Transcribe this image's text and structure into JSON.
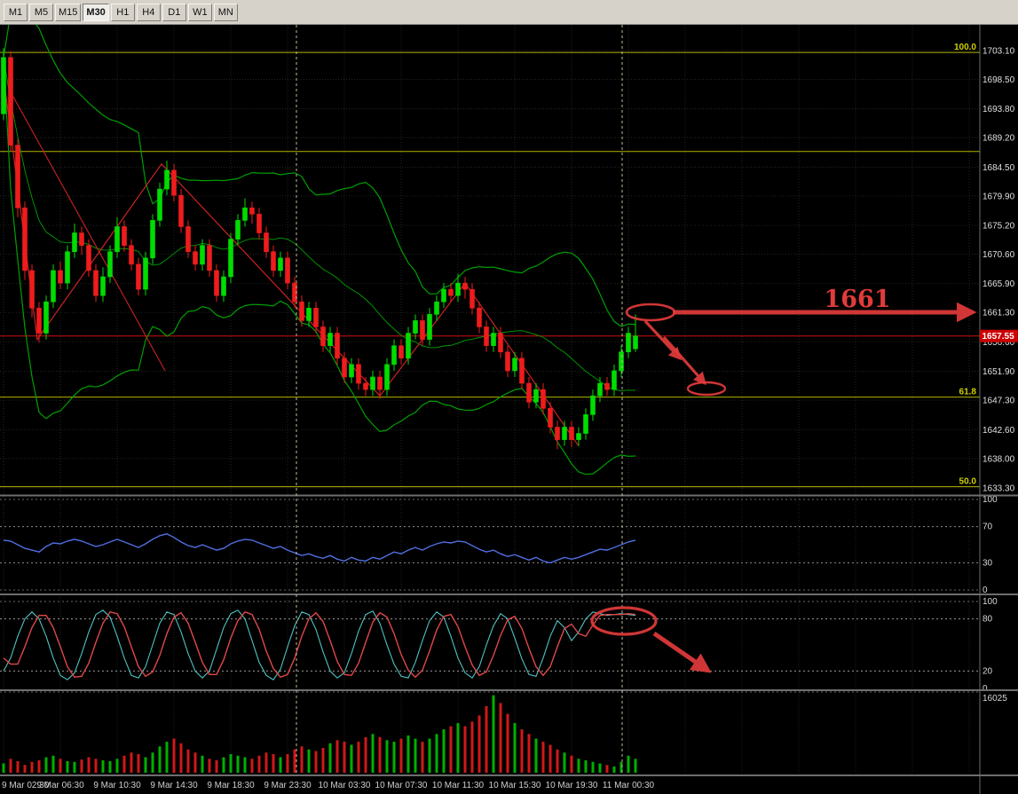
{
  "toolbar": {
    "timeframes": [
      "M1",
      "M5",
      "M15",
      "M30",
      "H1",
      "H4",
      "D1",
      "W1",
      "MN"
    ],
    "active": "M30"
  },
  "price_scale": {
    "ticks": [
      "1703.10",
      "1698.50",
      "1693.80",
      "1689.20",
      "1684.50",
      "1679.90",
      "1675.20",
      "1670.60",
      "1665.90",
      "1661.30",
      "1656.60",
      "1651.90",
      "1647.30",
      "1642.60",
      "1638.00",
      "1633.30"
    ],
    "current_price": "1657.55"
  },
  "fibo": {
    "levels": [
      {
        "label": "100.0",
        "price": 1702.8
      },
      {
        "label": "",
        "price": 1687.0
      },
      {
        "label": "61.8",
        "price": 1647.8
      },
      {
        "label": "50.0",
        "price": 1633.5
      }
    ]
  },
  "indicators": {
    "rsi_levels": [
      100,
      70,
      30,
      0
    ],
    "stoch_levels": [
      100,
      80,
      20,
      0
    ],
    "volume_axis_label": "16025"
  },
  "time_axis": {
    "labels": [
      "9 Mar 02:30",
      "9 Mar 06:30",
      "9 Mar 10:30",
      "9 Mar 14:30",
      "9 Mar 18:30",
      "9 Mar 23:30",
      "10 Mar 03:30",
      "10 Mar 07:30",
      "10 Mar 11:30",
      "10 Mar 15:30",
      "10 Mar 19:30",
      "11 Mar 00:30"
    ]
  },
  "chart_data": {
    "type": "candlestick",
    "timeframe": "M30",
    "price_range": [
      1632.3,
      1707.2
    ],
    "candles": [
      [
        1693,
        1703.5,
        1692,
        1702
      ],
      [
        1702,
        1703,
        1687,
        1688
      ],
      [
        1688,
        1689,
        1676.5,
        1678
      ],
      [
        1678,
        1679,
        1666.5,
        1668
      ],
      [
        1668,
        1669,
        1660.5,
        1662
      ],
      [
        1662,
        1663,
        1656.5,
        1658
      ],
      [
        1658,
        1664,
        1657,
        1663
      ],
      [
        1663,
        1669,
        1662,
        1668
      ],
      [
        1668,
        1669.5,
        1665,
        1666
      ],
      [
        1666,
        1672,
        1665,
        1671
      ],
      [
        1671,
        1675.5,
        1670,
        1674
      ],
      [
        1674,
        1675,
        1670.5,
        1672
      ],
      [
        1672,
        1673,
        1667,
        1668
      ],
      [
        1668,
        1669,
        1663,
        1664
      ],
      [
        1664,
        1668.5,
        1663,
        1667
      ],
      [
        1667,
        1672,
        1666,
        1671
      ],
      [
        1671,
        1676.5,
        1670,
        1675
      ],
      [
        1675,
        1676,
        1671,
        1672
      ],
      [
        1672,
        1673,
        1668,
        1669
      ],
      [
        1669,
        1670,
        1664,
        1665
      ],
      [
        1665,
        1671,
        1664,
        1670
      ],
      [
        1670,
        1677,
        1669,
        1676
      ],
      [
        1676,
        1682,
        1675,
        1681
      ],
      [
        1681,
        1685.5,
        1680,
        1684
      ],
      [
        1684,
        1685,
        1679,
        1680
      ],
      [
        1680,
        1681,
        1674,
        1675
      ],
      [
        1675,
        1676,
        1670,
        1671
      ],
      [
        1671,
        1672,
        1668,
        1669
      ],
      [
        1669,
        1673,
        1668,
        1672
      ],
      [
        1672,
        1673,
        1667,
        1668
      ],
      [
        1668,
        1669,
        1663,
        1664
      ],
      [
        1664,
        1668,
        1663,
        1667
      ],
      [
        1667,
        1674,
        1666,
        1673
      ],
      [
        1673,
        1677,
        1672,
        1676
      ],
      [
        1676,
        1679.5,
        1675,
        1678
      ],
      [
        1678,
        1679,
        1675.5,
        1677
      ],
      [
        1677,
        1678,
        1673,
        1674
      ],
      [
        1674,
        1675,
        1670,
        1671
      ],
      [
        1671,
        1672,
        1667,
        1668
      ],
      [
        1668,
        1671,
        1667,
        1670
      ],
      [
        1670,
        1671,
        1665,
        1666
      ],
      [
        1666,
        1667,
        1662,
        1663
      ],
      [
        1663,
        1664,
        1659,
        1660
      ],
      [
        1660,
        1663,
        1659,
        1662
      ],
      [
        1662,
        1663,
        1658,
        1659
      ],
      [
        1659,
        1660,
        1655,
        1656
      ],
      [
        1656,
        1659,
        1655,
        1658
      ],
      [
        1658,
        1659,
        1653,
        1654
      ],
      [
        1654,
        1655,
        1650,
        1651
      ],
      [
        1651,
        1654,
        1650,
        1653
      ],
      [
        1653,
        1654,
        1649,
        1650
      ],
      [
        1650,
        1651,
        1648,
        1649
      ],
      [
        1649,
        1652,
        1648,
        1651
      ],
      [
        1651,
        1652,
        1647.5,
        1649
      ],
      [
        1649,
        1654,
        1648,
        1653
      ],
      [
        1653,
        1657,
        1652,
        1656
      ],
      [
        1656,
        1657,
        1653,
        1654
      ],
      [
        1654,
        1659,
        1653,
        1658
      ],
      [
        1658,
        1661,
        1657,
        1660
      ],
      [
        1660,
        1661,
        1656,
        1657
      ],
      [
        1657,
        1662,
        1656,
        1661
      ],
      [
        1661,
        1664,
        1660,
        1663
      ],
      [
        1663,
        1666,
        1662,
        1665
      ],
      [
        1665,
        1666,
        1663,
        1664
      ],
      [
        1664,
        1667.5,
        1663,
        1666
      ],
      [
        1666,
        1667,
        1663.5,
        1665
      ],
      [
        1665,
        1666,
        1661,
        1662
      ],
      [
        1662,
        1663,
        1658,
        1659
      ],
      [
        1659,
        1660,
        1655,
        1656
      ],
      [
        1656,
        1659,
        1655,
        1658
      ],
      [
        1658,
        1659,
        1654,
        1655
      ],
      [
        1655,
        1656,
        1651,
        1652
      ],
      [
        1652,
        1655,
        1651,
        1654
      ],
      [
        1654,
        1655,
        1649,
        1650
      ],
      [
        1650,
        1651,
        1646,
        1647
      ],
      [
        1647,
        1650,
        1646,
        1649
      ],
      [
        1649,
        1650,
        1645,
        1646
      ],
      [
        1646,
        1647,
        1642,
        1643
      ],
      [
        1643,
        1644,
        1639.5,
        1641
      ],
      [
        1641,
        1644,
        1640,
        1643
      ],
      [
        1643,
        1644,
        1639.8,
        1641
      ],
      [
        1641,
        1643,
        1640,
        1642
      ],
      [
        1642,
        1646,
        1641,
        1645
      ],
      [
        1645,
        1649,
        1644,
        1648
      ],
      [
        1648,
        1651,
        1647,
        1650
      ],
      [
        1650,
        1651,
        1648,
        1649
      ],
      [
        1649,
        1653,
        1648,
        1652
      ],
      [
        1652,
        1656,
        1651,
        1655
      ],
      [
        1655,
        1659,
        1654,
        1658
      ],
      [
        1655.5,
        1661,
        1655,
        1657.55
      ]
    ],
    "overlays": {
      "bollinger_period": 20,
      "bollinger_dev": 2
    },
    "zigzag": [
      [
        4,
        1699
      ],
      [
        42,
        1657
      ],
      [
        182,
        1685
      ],
      [
        428,
        1648
      ],
      [
        524,
        1666
      ],
      [
        652,
        1640
      ]
    ],
    "trendline": [
      [
        10,
        1697
      ],
      [
        186,
        1652
      ]
    ],
    "rsi": [
      55,
      54,
      50,
      46,
      44,
      42,
      48,
      52,
      51,
      54,
      56,
      54,
      51,
      48,
      50,
      53,
      56,
      53,
      50,
      47,
      51,
      56,
      60,
      62,
      58,
      53,
      49,
      47,
      50,
      47,
      44,
      46,
      51,
      54,
      56,
      55,
      52,
      49,
      46,
      48,
      44,
      41,
      38,
      40,
      37,
      35,
      38,
      34,
      32,
      36,
      33,
      32,
      36,
      34,
      38,
      42,
      40,
      44,
      47,
      44,
      48,
      51,
      53,
      52,
      54,
      53,
      49,
      45,
      42,
      44,
      40,
      37,
      39,
      36,
      33,
      36,
      32,
      30,
      33,
      36,
      34,
      36,
      39,
      42,
      45,
      44,
      47,
      50,
      53,
      55
    ],
    "stoch_k": [
      20,
      35,
      60,
      80,
      88,
      80,
      60,
      35,
      15,
      10,
      18,
      40,
      65,
      85,
      90,
      82,
      60,
      35,
      15,
      12,
      25,
      50,
      75,
      88,
      85,
      65,
      40,
      20,
      12,
      20,
      45,
      70,
      86,
      90,
      80,
      55,
      30,
      15,
      10,
      22,
      48,
      72,
      88,
      85,
      68,
      42,
      20,
      12,
      18,
      40,
      66,
      85,
      89,
      75,
      50,
      28,
      14,
      12,
      30,
      55,
      78,
      88,
      82,
      60,
      35,
      18,
      12,
      25,
      50,
      72,
      86,
      80,
      58,
      34,
      16,
      14,
      35,
      60,
      78,
      70,
      55,
      65,
      80,
      88,
      86,
      84,
      85,
      86,
      85,
      84
    ],
    "stoch_d": [
      35,
      28,
      28,
      48,
      70,
      84,
      84,
      70,
      48,
      25,
      13,
      14,
      29,
      53,
      75,
      88,
      86,
      71,
      48,
      25,
      14,
      19,
      38,
      63,
      82,
      87,
      75,
      53,
      30,
      16,
      16,
      33,
      58,
      78,
      88,
      85,
      68,
      43,
      23,
      13,
      16,
      35,
      60,
      80,
      87,
      77,
      55,
      31,
      16,
      15,
      29,
      53,
      76,
      87,
      82,
      63,
      39,
      21,
      13,
      21,
      43,
      67,
      83,
      85,
      71,
      48,
      27,
      15,
      19,
      38,
      61,
      79,
      83,
      69,
      46,
      25,
      15,
      25,
      48,
      69,
      74,
      63,
      60,
      73,
      84,
      85,
      85,
      85,
      86,
      85
    ],
    "volume_rel": [
      12,
      18,
      15,
      10,
      14,
      16,
      20,
      22,
      18,
      15,
      14,
      17,
      20,
      18,
      16,
      15,
      18,
      22,
      26,
      24,
      20,
      26,
      34,
      40,
      44,
      38,
      30,
      26,
      22,
      18,
      16,
      20,
      24,
      22,
      20,
      18,
      22,
      26,
      24,
      20,
      24,
      30,
      34,
      30,
      28,
      32,
      38,
      42,
      40,
      36,
      40,
      46,
      50,
      46,
      42,
      40,
      44,
      48,
      44,
      40,
      44,
      50,
      56,
      60,
      64,
      60,
      66,
      74,
      86,
      100,
      90,
      76,
      64,
      56,
      50,
      44,
      40,
      36,
      30,
      26,
      22,
      18,
      16,
      14,
      12,
      10,
      8,
      14,
      22,
      18
    ],
    "volume_scale_max": 16500,
    "day_separators_x": [
      334,
      701
    ],
    "annotations": {
      "color": "#e23b3b",
      "target_price_label": "1661",
      "label_pos": [
        966,
        318
      ],
      "big_arrow": [
        758,
        324,
        1096,
        324
      ],
      "price_ellipse": [
        733,
        324,
        27,
        9
      ],
      "arrow_a": [
        727,
        334,
        766,
        376
      ],
      "arrow_b": [
        748,
        352,
        794,
        404
      ],
      "low_ellipse": [
        796,
        410,
        21,
        7
      ],
      "stoch_ellipse": [
        703,
        672,
        36,
        15
      ],
      "stoch_arrow": [
        737,
        686,
        798,
        728
      ]
    }
  }
}
